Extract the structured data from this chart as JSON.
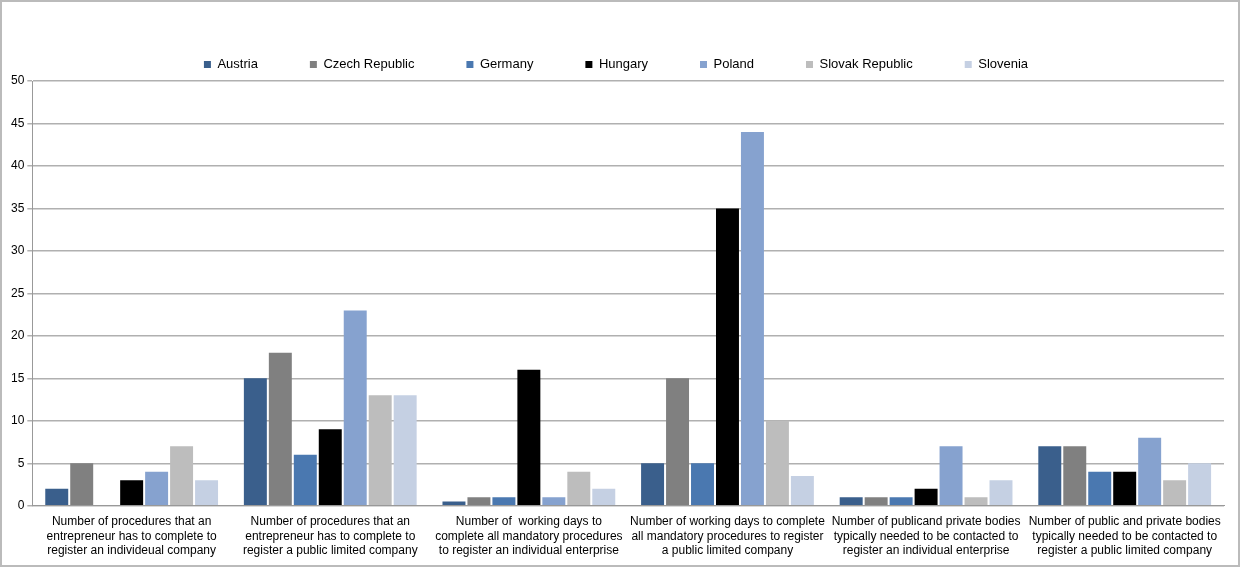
{
  "chart_data": {
    "type": "bar",
    "categories": [
      "Number of procedures that an entrepreneur has to complete to register an individeual company",
      "Number of procedures that an entrepreneur has to complete to register a public limited company",
      "Number of  working days to complete all mandatory procedures to register an individual enterprise",
      "Number of working days to complete all mandatory procedures to register a public limited company",
      "Number of publicand private bodies typically needed to be contacted to register an individual enterprise",
      "Number of public and private bodies typically needed to be contacted to register a public limited company"
    ],
    "series": [
      {
        "name": "Austria",
        "color": "#3a5f8c",
        "values": [
          2,
          15,
          0.5,
          5,
          1,
          7
        ]
      },
      {
        "name": "Czech Republic",
        "color": "#808080",
        "values": [
          5,
          18,
          1,
          15,
          1,
          7
        ]
      },
      {
        "name": "Germany",
        "color": "#4a78b0",
        "values": [
          null,
          6,
          1,
          5,
          1,
          4
        ]
      },
      {
        "name": "Hungary",
        "color": "#000000",
        "values": [
          3,
          9,
          16,
          35,
          2,
          4
        ]
      },
      {
        "name": "Poland",
        "color": "#86a2cf",
        "values": [
          4,
          23,
          1,
          44,
          7,
          8
        ]
      },
      {
        "name": "Slovak Republic",
        "color": "#bdbdbd",
        "values": [
          7,
          13,
          4,
          10,
          1,
          3
        ]
      },
      {
        "name": "Slovenia",
        "color": "#c5d0e3",
        "values": [
          3,
          13,
          2,
          3.5,
          3,
          5
        ]
      }
    ],
    "ylim": [
      0,
      50
    ],
    "yticks": [
      0,
      5,
      10,
      15,
      20,
      25,
      30,
      35,
      40,
      45,
      50
    ],
    "grid": "y",
    "legend": "top"
  }
}
